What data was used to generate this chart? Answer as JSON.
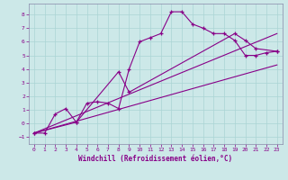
{
  "xlabel": "Windchill (Refroidissement éolien,°C)",
  "bg_color": "#cce8e8",
  "line_color": "#880088",
  "grid_color": "#aad4d4",
  "marker": "+",
  "xlim": [
    -0.5,
    23.5
  ],
  "ylim": [
    -1.5,
    8.8
  ],
  "xticks": [
    0,
    1,
    2,
    3,
    4,
    5,
    6,
    7,
    8,
    9,
    10,
    11,
    12,
    13,
    14,
    15,
    16,
    17,
    18,
    19,
    20,
    21,
    22,
    23
  ],
  "yticks": [
    -1,
    0,
    1,
    2,
    3,
    4,
    5,
    6,
    7,
    8
  ],
  "series1": [
    [
      0,
      -0.7
    ],
    [
      1,
      -0.7
    ],
    [
      2,
      0.7
    ],
    [
      3,
      1.1
    ],
    [
      4,
      0.1
    ],
    [
      5,
      1.5
    ],
    [
      6,
      1.6
    ],
    [
      7,
      1.5
    ],
    [
      8,
      1.1
    ],
    [
      9,
      4.0
    ],
    [
      10,
      6.0
    ],
    [
      11,
      6.3
    ],
    [
      12,
      6.6
    ],
    [
      13,
      8.2
    ],
    [
      14,
      8.2
    ],
    [
      15,
      7.3
    ],
    [
      16,
      7.0
    ],
    [
      17,
      6.6
    ],
    [
      18,
      6.6
    ],
    [
      19,
      6.1
    ],
    [
      20,
      5.0
    ],
    [
      21,
      5.0
    ],
    [
      22,
      5.2
    ],
    [
      23,
      5.3
    ]
  ],
  "series2": [
    [
      0,
      -0.7
    ],
    [
      4,
      0.1
    ],
    [
      8,
      3.8
    ],
    [
      9,
      2.3
    ],
    [
      19,
      6.6
    ],
    [
      20,
      6.1
    ],
    [
      21,
      5.5
    ],
    [
      23,
      5.3
    ]
  ],
  "series3": [
    [
      0,
      -0.7
    ],
    [
      23,
      6.6
    ]
  ],
  "series4": [
    [
      0,
      -0.7
    ],
    [
      23,
      4.3
    ]
  ]
}
